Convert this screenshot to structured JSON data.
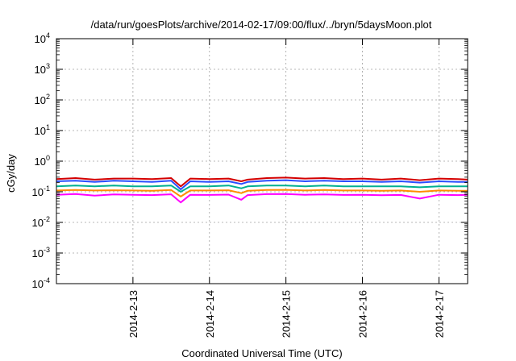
{
  "chart_data": {
    "type": "line",
    "title": "/data/run/goesPlots/archive/2014-02-17/09:00/flux/../bryn/5daysMoon.plot",
    "xlabel": "Coordinated Universal Time (UTC)",
    "ylabel": "cGy/day",
    "yscale": "log",
    "ylim": [
      0.0001,
      10000
    ],
    "xlim": [
      "2014-02-12 00:00",
      "2014-02-17 09:00"
    ],
    "grid": true,
    "y_ticks": [
      {
        "base": "10",
        "exp": "-4",
        "value": 0.0001
      },
      {
        "base": "10",
        "exp": "-3",
        "value": 0.001
      },
      {
        "base": "10",
        "exp": "-2",
        "value": 0.01
      },
      {
        "base": "10",
        "exp": "-1",
        "value": 0.1
      },
      {
        "base": "10",
        "exp": "0",
        "value": 1
      },
      {
        "base": "10",
        "exp": "1",
        "value": 10
      },
      {
        "base": "10",
        "exp": "2",
        "value": 100
      },
      {
        "base": "10",
        "exp": "3",
        "value": 1000
      },
      {
        "base": "10",
        "exp": "4",
        "value": 10000
      }
    ],
    "x_ticks": [
      {
        "label": "2014-2-13",
        "value": "2014-02-13 00:00"
      },
      {
        "label": "2014-2-14",
        "value": "2014-02-14 00:00"
      },
      {
        "label": "2014-2-15",
        "value": "2014-02-15 00:00"
      },
      {
        "label": "2014-2-16",
        "value": "2014-02-16 00:00"
      },
      {
        "label": "2014-2-17",
        "value": "2014-02-17 00:00"
      }
    ],
    "x": [
      "2014-02-12 00:00",
      "2014-02-12 06:00",
      "2014-02-12 12:00",
      "2014-02-12 18:00",
      "2014-02-13 00:00",
      "2014-02-13 06:00",
      "2014-02-13 12:00",
      "2014-02-13 15:00",
      "2014-02-13 18:00",
      "2014-02-14 00:00",
      "2014-02-14 06:00",
      "2014-02-14 10:00",
      "2014-02-14 12:00",
      "2014-02-14 18:00",
      "2014-02-15 00:00",
      "2014-02-15 06:00",
      "2014-02-15 12:00",
      "2014-02-15 18:00",
      "2014-02-16 00:00",
      "2014-02-16 06:00",
      "2014-02-16 12:00",
      "2014-02-16 18:00",
      "2014-02-17 00:00",
      "2014-02-17 06:00",
      "2014-02-17 09:00"
    ],
    "series": [
      {
        "color": "#d40000",
        "values": [
          0.26,
          0.28,
          0.25,
          0.27,
          0.27,
          0.26,
          0.28,
          0.15,
          0.27,
          0.26,
          0.27,
          0.22,
          0.25,
          0.28,
          0.29,
          0.27,
          0.28,
          0.26,
          0.27,
          0.25,
          0.27,
          0.24,
          0.27,
          0.26,
          0.25
        ]
      },
      {
        "color": "#2a4dff",
        "values": [
          0.22,
          0.23,
          0.21,
          0.23,
          0.22,
          0.21,
          0.23,
          0.12,
          0.22,
          0.21,
          0.22,
          0.18,
          0.21,
          0.23,
          0.24,
          0.22,
          0.23,
          0.22,
          0.22,
          0.21,
          0.22,
          0.2,
          0.22,
          0.21,
          0.21
        ]
      },
      {
        "color": "#00b090",
        "values": [
          0.15,
          0.16,
          0.15,
          0.16,
          0.15,
          0.15,
          0.16,
          0.1,
          0.15,
          0.15,
          0.16,
          0.13,
          0.15,
          0.16,
          0.16,
          0.15,
          0.16,
          0.15,
          0.15,
          0.15,
          0.15,
          0.14,
          0.15,
          0.15,
          0.15
        ]
      },
      {
        "color": "#ff8c00",
        "values": [
          0.11,
          0.115,
          0.11,
          0.112,
          0.11,
          0.108,
          0.114,
          0.07,
          0.11,
          0.11,
          0.112,
          0.09,
          0.108,
          0.115,
          0.116,
          0.11,
          0.114,
          0.11,
          0.11,
          0.108,
          0.11,
          0.1,
          0.11,
          0.108,
          0.108
        ]
      },
      {
        "color": "#ff00ff",
        "values": [
          0.08,
          0.085,
          0.075,
          0.082,
          0.08,
          0.078,
          0.083,
          0.045,
          0.08,
          0.079,
          0.081,
          0.055,
          0.078,
          0.084,
          0.085,
          0.08,
          0.082,
          0.079,
          0.08,
          0.077,
          0.079,
          0.06,
          0.08,
          0.078,
          0.08
        ]
      }
    ]
  }
}
